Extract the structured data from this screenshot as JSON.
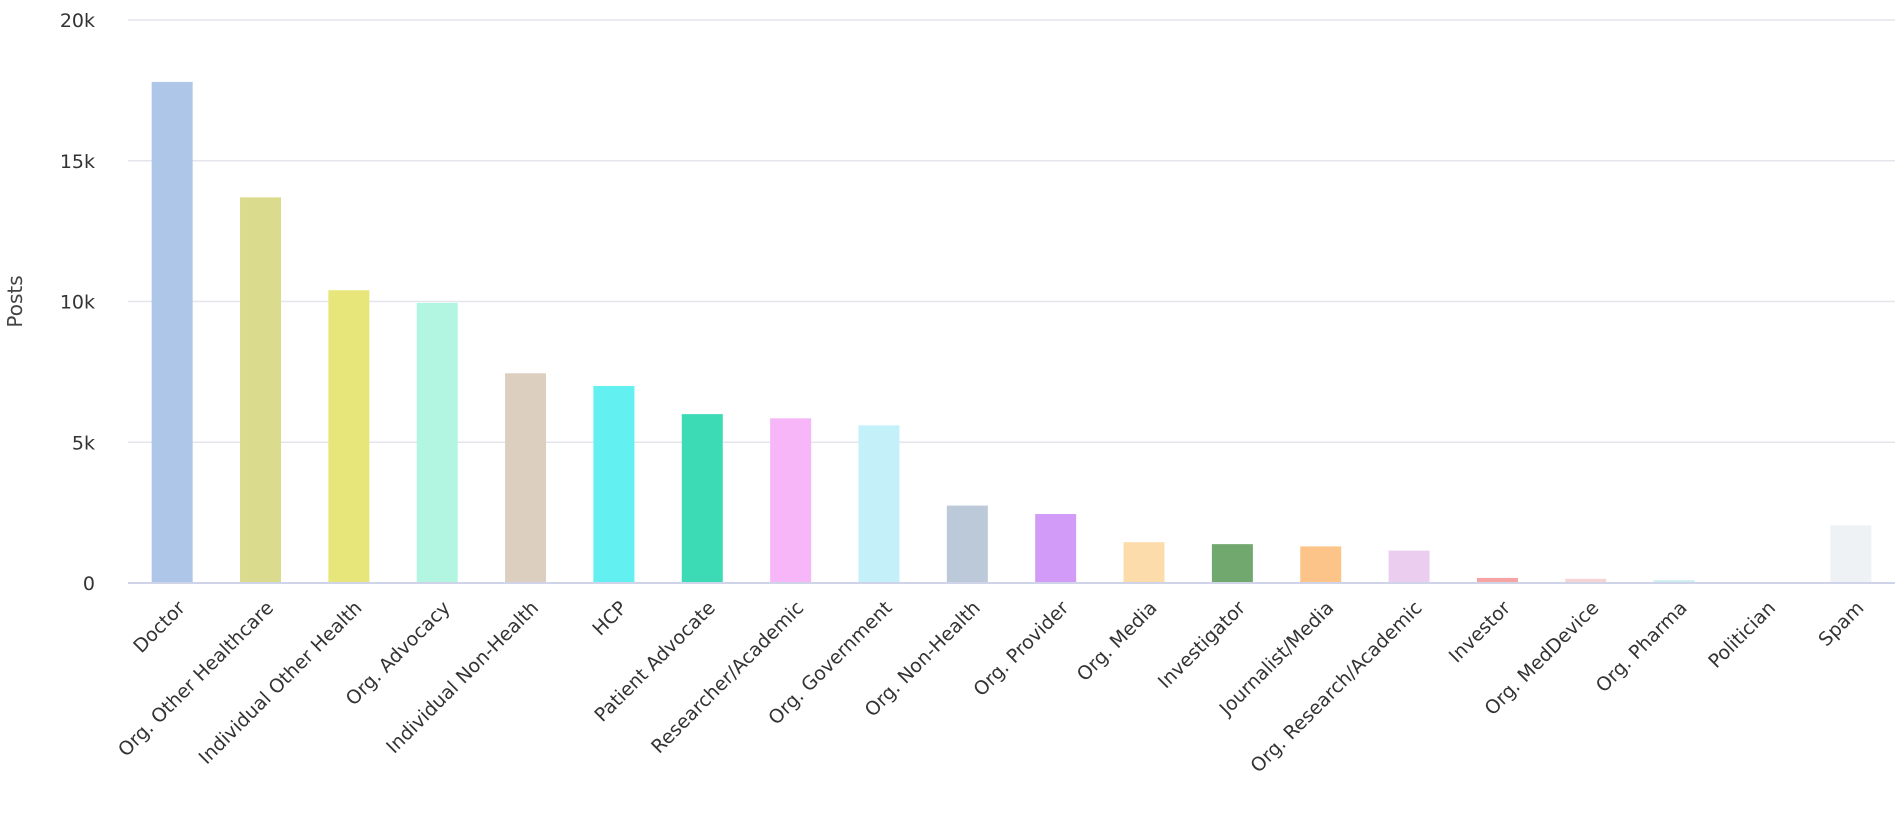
{
  "chart_data": {
    "type": "bar",
    "title": "",
    "xlabel": "",
    "ylabel": "Posts",
    "ylim": [
      0,
      20000
    ],
    "yticks": [
      {
        "value": 0,
        "label": "0"
      },
      {
        "value": 5000,
        "label": "5k"
      },
      {
        "value": 10000,
        "label": "10k"
      },
      {
        "value": 15000,
        "label": "15k"
      },
      {
        "value": 20000,
        "label": "20k"
      }
    ],
    "grid": true,
    "legend": "none",
    "categories": [
      "Doctor",
      "Org. Other Healthcare",
      "Individual Other Health",
      "Org. Advocacy",
      "Individual Non-Health",
      "HCP",
      "Patient Advocate",
      "Researcher/Academic",
      "Org. Government",
      "Org. Non-Health",
      "Org. Provider",
      "Org. Media",
      "Investigator",
      "Journalist/Media",
      "Org. Research/Academic",
      "Investor",
      "Org. MedDevice",
      "Org. Pharma",
      "Politician",
      "Spam"
    ],
    "values": [
      17800,
      13700,
      10400,
      9950,
      7450,
      7000,
      6000,
      5850,
      5600,
      2750,
      2450,
      1450,
      1380,
      1300,
      1150,
      180,
      150,
      100,
      30,
      2050
    ],
    "colors": [
      "#aec7e8",
      "#dbdb8d",
      "#e6e67a",
      "#b2f5e0",
      "#dccfc0",
      "#62f0f0",
      "#3ddbb5",
      "#f7b6f7",
      "#c4f0fa",
      "#bcc9d8",
      "#d29bf7",
      "#fcdcab",
      "#71a86e",
      "#fcc489",
      "#ebcdf0",
      "#f5a3a3",
      "#f7d4d4",
      "#cdeef0",
      "#e8e8e8",
      "#eef2f5"
    ]
  }
}
